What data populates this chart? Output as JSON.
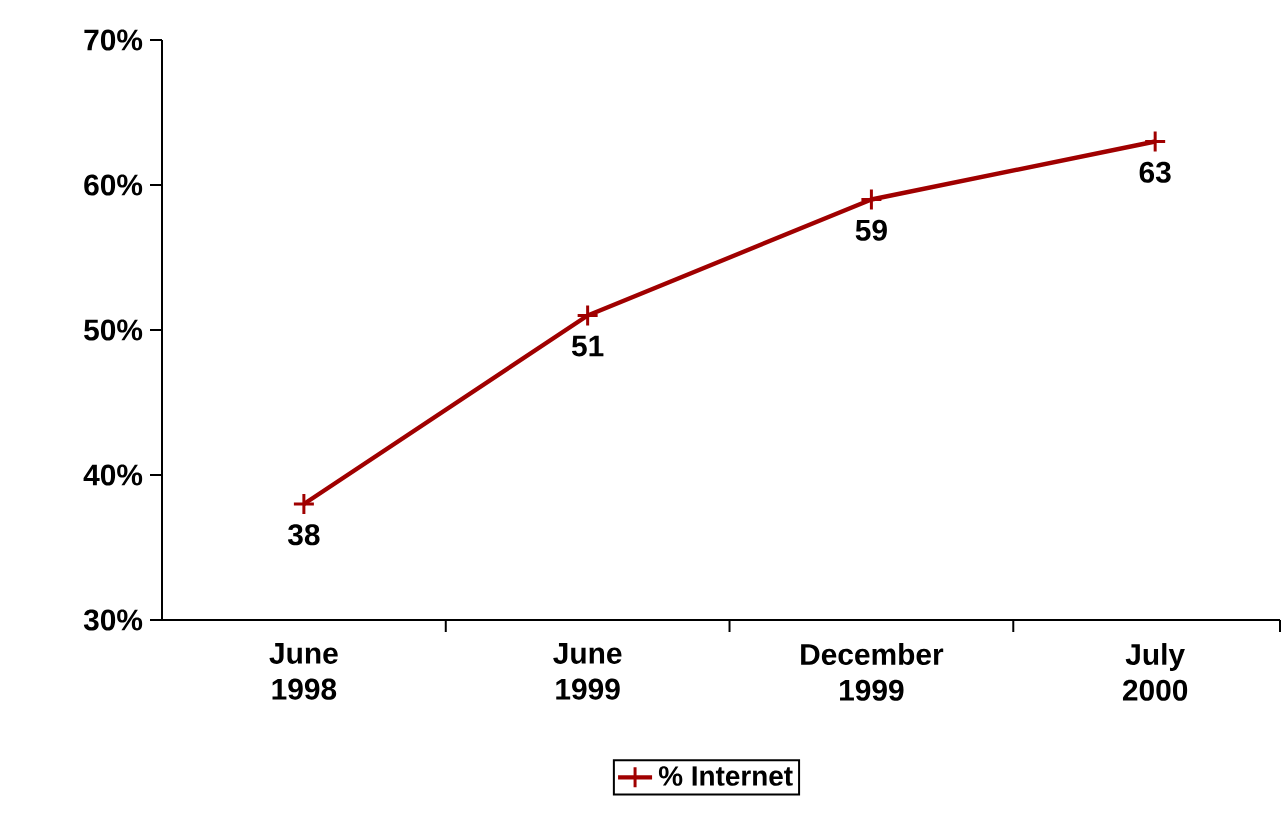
{
  "chart_data": {
    "type": "line",
    "categories": [
      "June 1998",
      "June 1999",
      "December 1999",
      "July 2000"
    ],
    "series": [
      {
        "name": "% Internet",
        "color": "#a00000",
        "values": [
          38,
          51,
          59,
          63
        ]
      }
    ],
    "ylim": [
      30,
      70
    ],
    "yticks": [
      {
        "value": 30,
        "label": "30%"
      },
      {
        "value": 40,
        "label": "40%"
      },
      {
        "value": 50,
        "label": "50%"
      },
      {
        "value": 60,
        "label": "60%"
      },
      {
        "value": 70,
        "label": "70%"
      }
    ],
    "data_labels": true,
    "marker": "cross",
    "line_style": "solid",
    "grid": false,
    "legend": "bottom"
  }
}
